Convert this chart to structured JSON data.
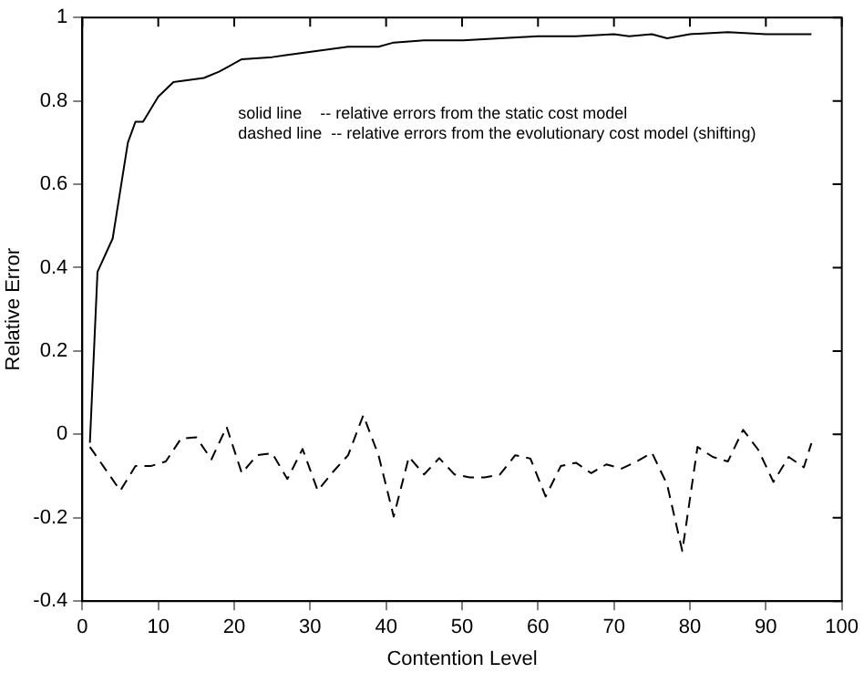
{
  "chart_data": {
    "type": "line",
    "xlabel": "Contention Level",
    "ylabel": "Relative Error",
    "xlim": [
      0,
      100
    ],
    "ylim": [
      -0.4,
      1
    ],
    "xticks": [
      0,
      10,
      20,
      30,
      40,
      50,
      60,
      70,
      80,
      90,
      100
    ],
    "yticks": [
      -0.4,
      -0.2,
      0,
      0.2,
      0.4,
      0.6,
      0.8,
      1
    ],
    "grid": false,
    "legend": false,
    "marker": "none",
    "annotations": [
      "solid line    -- relative errors from the static cost model",
      "dashed line  -- relative errors from the evolutionary cost model (shifting)"
    ],
    "series": [
      {
        "color": "#000000",
        "line_style": "solid",
        "x": [
          1,
          2,
          4,
          6,
          7,
          8,
          10,
          12,
          16,
          18,
          21,
          25,
          27,
          29,
          33,
          35,
          39,
          41,
          45,
          50,
          55,
          60,
          65,
          70,
          72,
          75,
          77,
          80,
          85,
          90,
          96
        ],
        "values": [
          -0.02,
          0.39,
          0.47,
          0.7,
          0.75,
          0.75,
          0.81,
          0.845,
          0.855,
          0.87,
          0.9,
          0.905,
          0.91,
          0.915,
          0.925,
          0.93,
          0.93,
          0.94,
          0.945,
          0.945,
          0.95,
          0.955,
          0.955,
          0.96,
          0.955,
          0.96,
          0.95,
          0.96,
          0.965,
          0.96,
          0.96
        ]
      },
      {
        "color": "#000000",
        "line_style": "dashed",
        "x": [
          1,
          5,
          7,
          9,
          11,
          13,
          15,
          17,
          19,
          21,
          23,
          25,
          27,
          29,
          31,
          33,
          35,
          37,
          39,
          41,
          43,
          45,
          47,
          49,
          51,
          53,
          55,
          57,
          59,
          61,
          63,
          65,
          67,
          69,
          71,
          73,
          75,
          77,
          79,
          81,
          83,
          85,
          87,
          89,
          91,
          93,
          95,
          96
        ],
        "values": [
          -0.03,
          -0.135,
          -0.076,
          -0.076,
          -0.065,
          -0.01,
          -0.007,
          -0.06,
          0.018,
          -0.093,
          -0.05,
          -0.045,
          -0.107,
          -0.035,
          -0.135,
          -0.09,
          -0.05,
          0.046,
          -0.05,
          -0.197,
          -0.054,
          -0.096,
          -0.057,
          -0.096,
          -0.103,
          -0.103,
          -0.096,
          -0.05,
          -0.058,
          -0.149,
          -0.076,
          -0.068,
          -0.093,
          -0.072,
          -0.082,
          -0.065,
          -0.044,
          -0.12,
          -0.28,
          -0.03,
          -0.054,
          -0.065,
          0.011,
          -0.037,
          -0.114,
          -0.054,
          -0.079,
          -0.021
        ]
      }
    ]
  }
}
